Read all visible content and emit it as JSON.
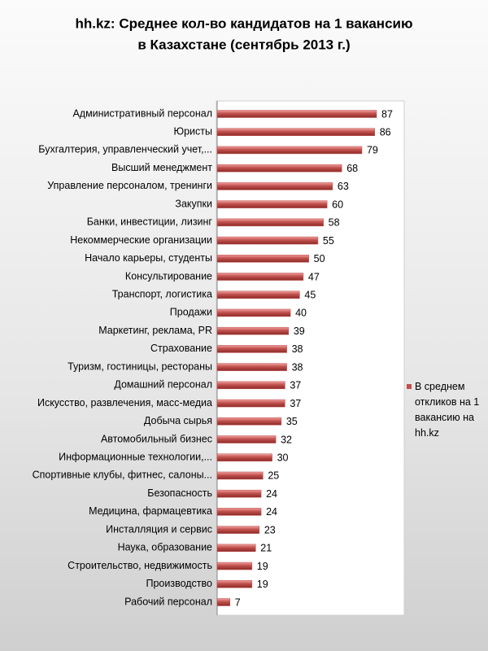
{
  "chart_data": {
    "type": "bar",
    "orientation": "horizontal",
    "title": [
      "hh.kz: Среднее кол-во кандидатов на 1 вакансию",
      "в Казахстане  (сентябрь 2013 г.)"
    ],
    "categories": [
      "Административный персонал",
      "Юристы",
      "Бухгалтерия, управленческий учет,...",
      "Высший менеджмент",
      "Управление персоналом, тренинги",
      "Закупки",
      "Банки, инвестиции, лизинг",
      "Некоммерческие организации",
      "Начало карьеры, студенты",
      "Консультирование",
      "Транспорт, логистика",
      "Продажи",
      "Маркетинг, реклама, PR",
      "Страхование",
      "Туризм, гостиницы, рестораны",
      "Домашний персонал",
      "Искусство, развлечения, масс-медиа",
      "Добыча сырья",
      "Автомобильный бизнес",
      "Информационные технологии,...",
      "Спортивные клубы, фитнес, салоны...",
      "Безопасность",
      "Медицина, фармацевтика",
      "Инсталляция и сервис",
      "Наука, образование",
      "Строительство, недвижимость",
      "Производство",
      "Рабочий персонал"
    ],
    "series": [
      {
        "name": "В среднем откликов на 1 вакансию на hh.kz",
        "color": "#c0504d",
        "values": [
          87,
          86,
          79,
          68,
          63,
          60,
          58,
          55,
          50,
          47,
          45,
          40,
          39,
          38,
          38,
          37,
          37,
          35,
          32,
          30,
          25,
          24,
          24,
          23,
          21,
          19,
          19,
          7
        ]
      }
    ],
    "legend": "right"
  }
}
